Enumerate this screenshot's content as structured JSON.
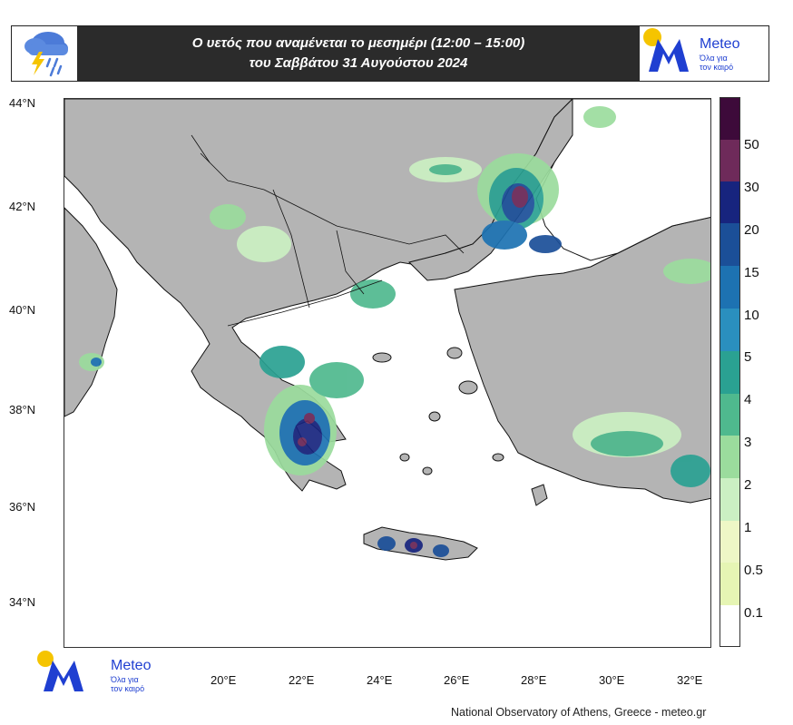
{
  "header": {
    "title_line1": "Ο υετός που αναμένεται το μεσημέρι (12:00 – 15:00)",
    "title_line2": "του Σαββάτου 31 Αυγούστου 2024",
    "weather_icon": "rain-cloud-lightning-icon"
  },
  "logo": {
    "brand": "Meteo",
    "tagline_line1": "Όλα για",
    "tagline_line2": "τον καιρό",
    "colors": {
      "sun": "#f5c400",
      "m": "#1f3fd1",
      "text": "#1f3fd1"
    }
  },
  "map": {
    "latitude_labels": [
      "44°N",
      "42°N",
      "40°N",
      "38°N",
      "36°N",
      "34°N"
    ],
    "longitude_labels": [
      "20°E",
      "22°E",
      "24°E",
      "26°E",
      "28°E",
      "30°E",
      "32°E"
    ],
    "land_color": "#b4b4b4",
    "sea_color": "#ffffff"
  },
  "legend": {
    "labels": [
      "50",
      "30",
      "20",
      "15",
      "10",
      "5",
      "4",
      "3",
      "2",
      "1",
      "0.5",
      "0.1"
    ],
    "colors": [
      "#3d0a3a",
      "#6e2a5a",
      "#17247e",
      "#1b4f98",
      "#1d72b2",
      "#2a8fbe",
      "#2aa192",
      "#4fb98e",
      "#9bdc9d",
      "#cbf0c3",
      "#eef7c6",
      "#e6f5b4",
      "#ffffff"
    ]
  },
  "footer": {
    "credit": "National Observatory of Athens, Greece - meteo.gr"
  }
}
